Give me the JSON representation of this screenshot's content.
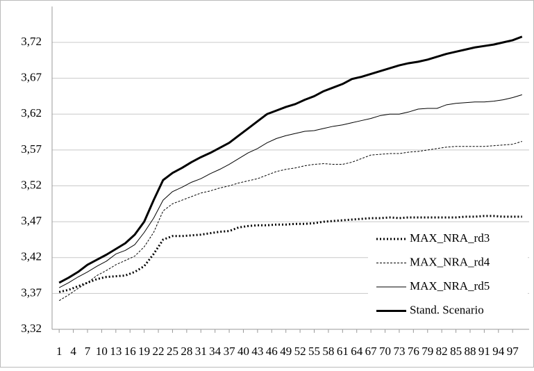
{
  "chart_data": {
    "type": "line",
    "x": [
      1,
      3,
      5,
      7,
      9,
      11,
      13,
      15,
      17,
      19,
      21,
      23,
      25,
      27,
      29,
      31,
      33,
      35,
      37,
      39,
      41,
      43,
      45,
      47,
      49,
      51,
      53,
      55,
      57,
      59,
      61,
      63,
      65,
      67,
      69,
      71,
      73,
      75,
      77,
      79,
      81,
      83,
      85,
      87,
      89,
      91,
      93,
      95,
      97,
      99
    ],
    "xlim": [
      -0.5,
      100.5
    ],
    "xticks": [
      1,
      4,
      7,
      10,
      13,
      16,
      19,
      22,
      25,
      28,
      31,
      34,
      37,
      40,
      43,
      46,
      49,
      52,
      55,
      58,
      61,
      64,
      67,
      70,
      73,
      76,
      79,
      82,
      85,
      88,
      91,
      94,
      97
    ],
    "ylim": [
      3.32,
      3.77
    ],
    "yticks": [
      {
        "value": 3.32,
        "label": "3,32"
      },
      {
        "value": 3.37,
        "label": "3,37"
      },
      {
        "value": 3.42,
        "label": "3,42"
      },
      {
        "value": 3.47,
        "label": "3,47"
      },
      {
        "value": 3.52,
        "label": "3,52"
      },
      {
        "value": 3.57,
        "label": "3,57"
      },
      {
        "value": 3.62,
        "label": "3,62"
      },
      {
        "value": 3.67,
        "label": "3,67"
      },
      {
        "value": 3.72,
        "label": "3,72"
      }
    ],
    "grid": true,
    "legend": "lower right",
    "series": [
      {
        "name": "MAX_NRA_rd3",
        "color": "#000000",
        "line_style": "dotted",
        "line_width": 3,
        "values": [
          3.372,
          3.375,
          3.38,
          3.385,
          3.39,
          3.393,
          3.394,
          3.395,
          3.4,
          3.408,
          3.425,
          3.445,
          3.45,
          3.45,
          3.451,
          3.452,
          3.454,
          3.456,
          3.457,
          3.462,
          3.464,
          3.465,
          3.465,
          3.466,
          3.466,
          3.467,
          3.467,
          3.468,
          3.47,
          3.471,
          3.472,
          3.473,
          3.474,
          3.475,
          3.475,
          3.476,
          3.475,
          3.476,
          3.476,
          3.476,
          3.476,
          3.476,
          3.476,
          3.477,
          3.477,
          3.478,
          3.478,
          3.477,
          3.477,
          3.477
        ]
      },
      {
        "name": "MAX_NRA_rd4",
        "color": "#000000",
        "line_style": "dashed",
        "line_width": 1,
        "values": [
          3.36,
          3.368,
          3.377,
          3.385,
          3.395,
          3.402,
          3.41,
          3.416,
          3.422,
          3.435,
          3.455,
          3.485,
          3.495,
          3.5,
          3.505,
          3.51,
          3.513,
          3.517,
          3.52,
          3.524,
          3.527,
          3.53,
          3.535,
          3.54,
          3.543,
          3.545,
          3.548,
          3.55,
          3.551,
          3.55,
          3.55,
          3.553,
          3.558,
          3.563,
          3.564,
          3.565,
          3.565,
          3.567,
          3.568,
          3.57,
          3.572,
          3.574,
          3.575,
          3.575,
          3.575,
          3.575,
          3.576,
          3.577,
          3.578,
          3.582
        ]
      },
      {
        "name": "MAX_NRA_rd5",
        "color": "#000000",
        "line_style": "solid",
        "line_width": 1,
        "values": [
          3.378,
          3.385,
          3.393,
          3.4,
          3.408,
          3.415,
          3.425,
          3.43,
          3.438,
          3.455,
          3.475,
          3.5,
          3.512,
          3.518,
          3.525,
          3.53,
          3.537,
          3.543,
          3.55,
          3.558,
          3.566,
          3.572,
          3.58,
          3.586,
          3.59,
          3.593,
          3.596,
          3.597,
          3.6,
          3.603,
          3.605,
          3.608,
          3.611,
          3.614,
          3.618,
          3.62,
          3.62,
          3.623,
          3.627,
          3.628,
          3.628,
          3.633,
          3.635,
          3.636,
          3.637,
          3.637,
          3.638,
          3.64,
          3.643,
          3.647
        ]
      },
      {
        "name": "Stand. Scenario",
        "color": "#000000",
        "line_style": "solid",
        "line_width": 3,
        "values": [
          3.385,
          3.392,
          3.4,
          3.41,
          3.417,
          3.424,
          3.432,
          3.44,
          3.452,
          3.47,
          3.5,
          3.528,
          3.538,
          3.545,
          3.553,
          3.56,
          3.566,
          3.573,
          3.58,
          3.59,
          3.6,
          3.61,
          3.62,
          3.625,
          3.63,
          3.634,
          3.64,
          3.645,
          3.652,
          3.657,
          3.662,
          3.669,
          3.672,
          3.676,
          3.68,
          3.684,
          3.688,
          3.691,
          3.693,
          3.696,
          3.7,
          3.704,
          3.707,
          3.71,
          3.713,
          3.715,
          3.717,
          3.72,
          3.723,
          3.728
        ]
      }
    ]
  }
}
